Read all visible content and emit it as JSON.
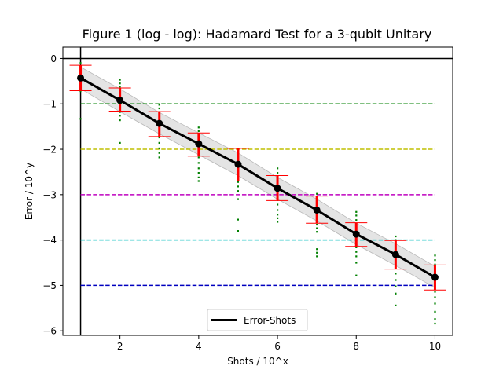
{
  "chart_data": {
    "type": "line",
    "title": "Figure 1 (log - log): Hadamard Test for a 3-qubit Unitary",
    "xlabel": "Shots / 10^x",
    "ylabel": "Error / 10^y",
    "xlim": [
      0.55,
      10.45
    ],
    "ylim": [
      -6.1,
      0.25
    ],
    "xticks": [
      2,
      4,
      6,
      8,
      10
    ],
    "yticks": [
      0,
      -1,
      -2,
      -3,
      -4,
      -5,
      -6
    ],
    "grid": false,
    "legend_position": "bottom-center",
    "series": [
      {
        "name": "Error-Shots",
        "color": "#000000",
        "x": [
          1,
          2,
          3,
          4,
          5,
          6,
          7,
          8,
          9,
          10
        ],
        "y": [
          -0.43,
          -0.92,
          -1.43,
          -1.88,
          -2.33,
          -2.86,
          -3.34,
          -3.87,
          -4.32,
          -4.82
        ]
      }
    ],
    "band": {
      "color": "#d9d9d9",
      "lower": [
        -0.67,
        -1.17,
        -1.66,
        -2.12,
        -2.58,
        -3.1,
        -3.58,
        -4.1,
        -4.56,
        -5.05
      ],
      "upper": [
        -0.19,
        -0.67,
        -1.19,
        -1.64,
        -2.08,
        -2.62,
        -3.1,
        -3.63,
        -4.08,
        -4.58
      ]
    },
    "error_bars": {
      "color": "#ff0000",
      "lower": [
        -0.71,
        -1.16,
        -1.72,
        -2.15,
        -2.7,
        -3.13,
        -3.63,
        -4.14,
        -4.64,
        -5.1
      ],
      "upper": [
        -0.15,
        -0.65,
        -1.17,
        -1.64,
        -1.98,
        -2.58,
        -3.03,
        -3.62,
        -4.01,
        -4.55
      ]
    },
    "samples": {
      "color": "#008000",
      "points": [
        [
          1,
          -0.1
        ],
        [
          1,
          -0.18
        ],
        [
          1,
          -0.24
        ],
        [
          1,
          -0.28
        ],
        [
          1,
          -0.33
        ],
        [
          1,
          -0.36
        ],
        [
          1,
          -0.4
        ],
        [
          1,
          -0.44
        ],
        [
          1,
          -0.48
        ],
        [
          1,
          -0.52
        ],
        [
          1,
          -0.56
        ],
        [
          1,
          -0.6
        ],
        [
          1,
          -0.66
        ],
        [
          1,
          -0.72
        ],
        [
          1,
          -1.33
        ],
        [
          2,
          -0.47
        ],
        [
          2,
          -0.55
        ],
        [
          2,
          -0.62
        ],
        [
          2,
          -0.7
        ],
        [
          2,
          -0.76
        ],
        [
          2,
          -0.82
        ],
        [
          2,
          -0.86
        ],
        [
          2,
          -0.9
        ],
        [
          2,
          -0.94
        ],
        [
          2,
          -0.98
        ],
        [
          2,
          -1.04
        ],
        [
          2,
          -1.1
        ],
        [
          2,
          -1.18
        ],
        [
          2,
          -1.26
        ],
        [
          2,
          -1.36
        ],
        [
          2,
          -1.86
        ],
        [
          3,
          -1.02
        ],
        [
          3,
          -1.1
        ],
        [
          3,
          -1.18
        ],
        [
          3,
          -1.25
        ],
        [
          3,
          -1.32
        ],
        [
          3,
          -1.38
        ],
        [
          3,
          -1.44
        ],
        [
          3,
          -1.5
        ],
        [
          3,
          -1.56
        ],
        [
          3,
          -1.64
        ],
        [
          3,
          -1.74
        ],
        [
          3,
          -1.86
        ],
        [
          3,
          -1.98
        ],
        [
          3,
          -2.08
        ],
        [
          3,
          -2.18
        ],
        [
          4,
          -1.52
        ],
        [
          4,
          -1.6
        ],
        [
          4,
          -1.68
        ],
        [
          4,
          -1.76
        ],
        [
          4,
          -1.82
        ],
        [
          4,
          -1.88
        ],
        [
          4,
          -1.94
        ],
        [
          4,
          -2.0
        ],
        [
          4,
          -2.08
        ],
        [
          4,
          -2.18
        ],
        [
          4,
          -2.3
        ],
        [
          4,
          -2.42
        ],
        [
          4,
          -2.52
        ],
        [
          4,
          -2.62
        ],
        [
          4,
          -2.7
        ],
        [
          5,
          -2.0
        ],
        [
          5,
          -2.08
        ],
        [
          5,
          -2.16
        ],
        [
          5,
          -2.24
        ],
        [
          5,
          -2.3
        ],
        [
          5,
          -2.36
        ],
        [
          5,
          -2.44
        ],
        [
          5,
          -2.52
        ],
        [
          5,
          -2.62
        ],
        [
          5,
          -2.72
        ],
        [
          5,
          -2.82
        ],
        [
          5,
          -2.92
        ],
        [
          5,
          -3.1
        ],
        [
          5,
          -3.55
        ],
        [
          5,
          -3.8
        ],
        [
          6,
          -2.42
        ],
        [
          6,
          -2.52
        ],
        [
          6,
          -2.6
        ],
        [
          6,
          -2.68
        ],
        [
          6,
          -2.76
        ],
        [
          6,
          -2.84
        ],
        [
          6,
          -2.9
        ],
        [
          6,
          -2.96
        ],
        [
          6,
          -3.04
        ],
        [
          6,
          -3.12
        ],
        [
          6,
          -3.22
        ],
        [
          6,
          -3.34
        ],
        [
          6,
          -3.44
        ],
        [
          6,
          -3.52
        ],
        [
          6,
          -3.6
        ],
        [
          7,
          -2.98
        ],
        [
          7,
          -3.06
        ],
        [
          7,
          -3.14
        ],
        [
          7,
          -3.22
        ],
        [
          7,
          -3.3
        ],
        [
          7,
          -3.36
        ],
        [
          7,
          -3.42
        ],
        [
          7,
          -3.5
        ],
        [
          7,
          -3.58
        ],
        [
          7,
          -3.66
        ],
        [
          7,
          -3.74
        ],
        [
          7,
          -3.82
        ],
        [
          7,
          -4.2
        ],
        [
          7,
          -4.28
        ],
        [
          7,
          -4.36
        ],
        [
          8,
          -3.38
        ],
        [
          8,
          -3.46
        ],
        [
          8,
          -3.56
        ],
        [
          8,
          -3.66
        ],
        [
          8,
          -3.74
        ],
        [
          8,
          -3.82
        ],
        [
          8,
          -3.88
        ],
        [
          8,
          -3.94
        ],
        [
          8,
          -4.0
        ],
        [
          8,
          -4.08
        ],
        [
          8,
          -4.16
        ],
        [
          8,
          -4.26
        ],
        [
          8,
          -4.36
        ],
        [
          8,
          -4.5
        ],
        [
          8,
          -4.78
        ],
        [
          9,
          -3.92
        ],
        [
          9,
          -4.0
        ],
        [
          9,
          -4.08
        ],
        [
          9,
          -4.16
        ],
        [
          9,
          -4.24
        ],
        [
          9,
          -4.3
        ],
        [
          9,
          -4.36
        ],
        [
          9,
          -4.44
        ],
        [
          9,
          -4.52
        ],
        [
          9,
          -4.62
        ],
        [
          9,
          -4.74
        ],
        [
          9,
          -4.88
        ],
        [
          9,
          -5.02
        ],
        [
          9,
          -5.18
        ],
        [
          9,
          -5.44
        ],
        [
          10,
          -4.34
        ],
        [
          10,
          -4.44
        ],
        [
          10,
          -4.54
        ],
        [
          10,
          -4.62
        ],
        [
          10,
          -4.7
        ],
        [
          10,
          -4.78
        ],
        [
          10,
          -4.86
        ],
        [
          10,
          -4.94
        ],
        [
          10,
          -5.02
        ],
        [
          10,
          -5.14
        ],
        [
          10,
          -5.26
        ],
        [
          10,
          -5.4
        ],
        [
          10,
          -5.58
        ],
        [
          10,
          -5.74
        ],
        [
          10,
          -5.84
        ]
      ]
    },
    "reference_lines": [
      {
        "axis": "y",
        "value": 0,
        "color": "#000000",
        "style": "solid"
      },
      {
        "axis": "x",
        "value": 1,
        "color": "#000000",
        "style": "solid"
      },
      {
        "axis": "y",
        "value": -1,
        "color": "#008000",
        "style": "dashed"
      },
      {
        "axis": "y",
        "value": -2,
        "color": "#bfbf00",
        "style": "dashed"
      },
      {
        "axis": "y",
        "value": -3,
        "color": "#bf00bf",
        "style": "dashed"
      },
      {
        "axis": "y",
        "value": -4,
        "color": "#00bfbf",
        "style": "dashed"
      },
      {
        "axis": "y",
        "value": -5,
        "color": "#0000bf",
        "style": "dashed"
      }
    ]
  }
}
